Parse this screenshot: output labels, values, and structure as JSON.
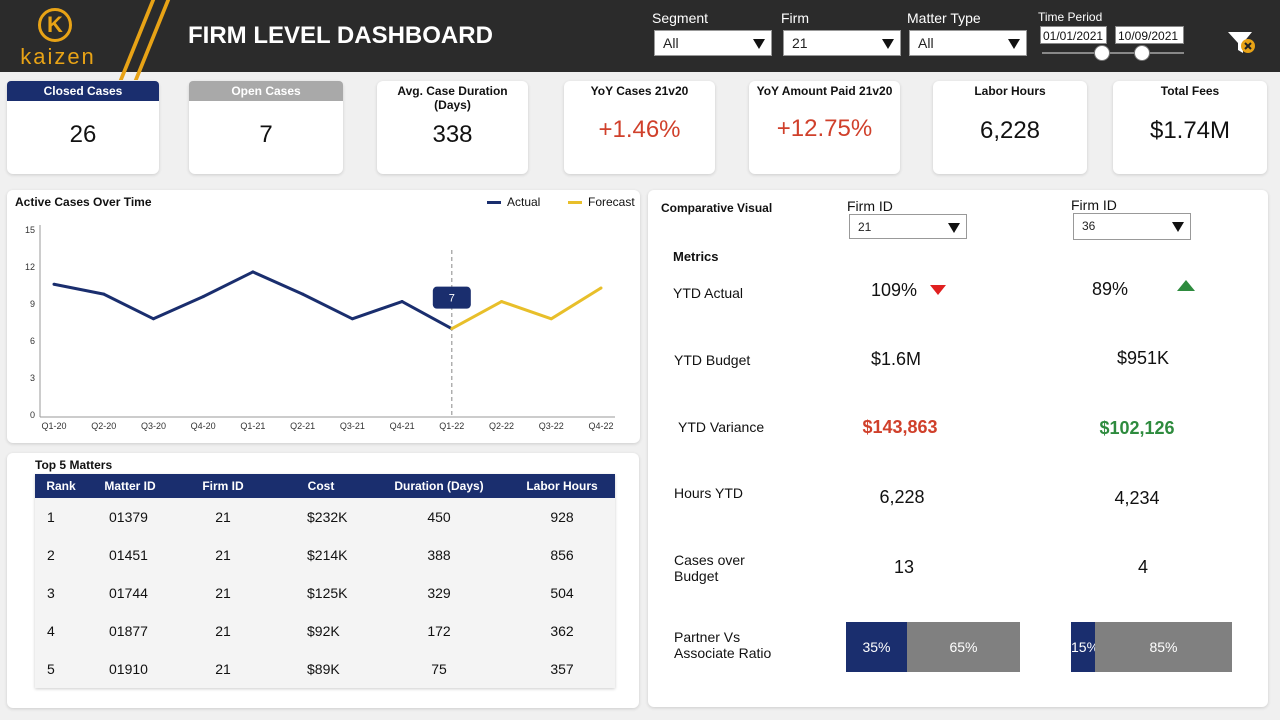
{
  "header": {
    "brand": "kaizen",
    "title": "FIRM LEVEL DASHBOARD",
    "filters": {
      "segment": {
        "label": "Segment",
        "value": "All"
      },
      "firm": {
        "label": "Firm",
        "value": "21"
      },
      "matter_type": {
        "label": "Matter Type",
        "value": "All"
      },
      "time_period": {
        "label": "Time Period",
        "start": "01/01/2021",
        "end": "10/09/2021"
      }
    }
  },
  "kpis": [
    {
      "title": "Closed Cases",
      "value": "26"
    },
    {
      "title": "Open Cases",
      "value": "7"
    },
    {
      "title": "Avg. Case Duration (Days)",
      "value": "338"
    },
    {
      "title": "YoY Cases 21v20",
      "value": "+1.46%"
    },
    {
      "title": "YoY Amount Paid 21v20",
      "value": "+12.75%"
    },
    {
      "title": "Labor Hours",
      "value": "6,228"
    },
    {
      "title": "Total Fees",
      "value": "$1.74M"
    }
  ],
  "active_cases": {
    "title": "Active Cases Over Time",
    "legend_actual": "Actual",
    "legend_forecast": "Forecast",
    "tooltip": "7"
  },
  "chart_data": {
    "type": "line",
    "title": "Active Cases Over Time",
    "categories": [
      "Q1-20",
      "Q2-20",
      "Q3-20",
      "Q4-20",
      "Q1-21",
      "Q2-21",
      "Q3-21",
      "Q4-21",
      "Q1-22",
      "Q2-22",
      "Q3-22",
      "Q4-22"
    ],
    "ylim": [
      0,
      15
    ],
    "yticks": [
      "0",
      "3",
      "6",
      "9",
      "12",
      "15"
    ],
    "series": [
      {
        "name": "Actual",
        "color": "#1a2e6e",
        "values": [
          10.6,
          9.8,
          7.8,
          9.6,
          11.6,
          9.8,
          7.8,
          9.2,
          7.0,
          null,
          null,
          null
        ]
      },
      {
        "name": "Forecast",
        "color": "#e8bf2a",
        "values": [
          null,
          null,
          null,
          null,
          null,
          null,
          null,
          null,
          7.0,
          9.2,
          7.8,
          10.3
        ]
      }
    ],
    "legend": "top-right",
    "grid": false
  },
  "top_matters": {
    "title": "Top 5 Matters",
    "columns": [
      "Rank",
      "Matter ID",
      "Firm ID",
      "Cost",
      "Duration (Days)",
      "Labor Hours"
    ],
    "rows": [
      [
        "1",
        "01379",
        "21",
        "$232K",
        "450",
        "928"
      ],
      [
        "2",
        "01451",
        "21",
        "$214K",
        "388",
        "856"
      ],
      [
        "3",
        "01744",
        "21",
        "$125K",
        "329",
        "504"
      ],
      [
        "4",
        "01877",
        "21",
        "$92K",
        "172",
        "362"
      ],
      [
        "5",
        "01910",
        "21",
        "$89K",
        "75",
        "357"
      ]
    ]
  },
  "comparative": {
    "title": "Comparative Visual",
    "metrics_header": "Metrics",
    "firm_a": {
      "label": "Firm ID",
      "value": "21"
    },
    "firm_b": {
      "label": "Firm ID",
      "value": "36"
    },
    "rows": [
      {
        "label": "YTD Actual",
        "a": "109%",
        "b": "89%"
      },
      {
        "label": "YTD Budget",
        "a": "$1.6M",
        "b": "$951K"
      },
      {
        "label": "YTD Variance",
        "a": "$143,863",
        "b": "$102,126"
      },
      {
        "label": "Hours YTD",
        "a": "6,228",
        "b": "4,234"
      },
      {
        "label": "Cases over Budget",
        "a": "13",
        "b": "4"
      },
      {
        "label": "Partner Vs Associate Ratio",
        "a": "",
        "b": ""
      }
    ],
    "ratio_a": {
      "partner": "35%",
      "associate": "65%",
      "partner_fraction": 0.35
    },
    "ratio_b": {
      "partner": "15%",
      "associate": "85%",
      "partner_fraction": 0.15
    },
    "colors": {
      "partner": "#1a2e6e",
      "associate": "#808080",
      "negative": "#d0402b",
      "positive": "#2e8b3e"
    }
  }
}
